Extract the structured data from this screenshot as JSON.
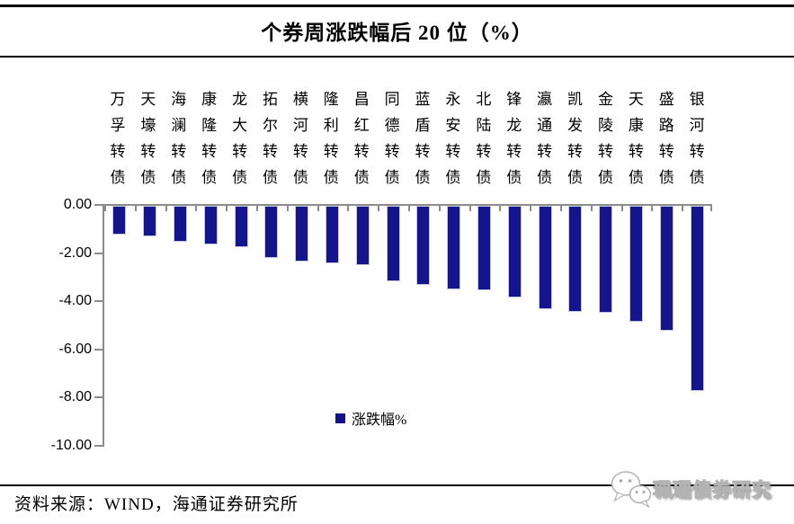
{
  "title": "个券周涨跌幅后 20 位（%）",
  "chart_data": {
    "type": "bar",
    "title": "个券周涨跌幅后 20 位（%）",
    "categories": [
      "万孚转债",
      "天壕转债",
      "海澜转债",
      "康隆转债",
      "龙大转债",
      "拓尔转债",
      "横河转债",
      "隆利转债",
      "昌红转债",
      "同德转债",
      "蓝盾转债",
      "永安转债",
      "北陆转债",
      "锋龙转债",
      "瀛通转债",
      "凯发转债",
      "金陵转债",
      "天康转债",
      "盛路转债",
      "银河转债"
    ],
    "series": [
      {
        "name": "涨跌幅%",
        "values": [
          -1.2,
          -1.25,
          -1.5,
          -1.6,
          -1.7,
          -2.15,
          -2.3,
          -2.4,
          -2.45,
          -3.15,
          -3.3,
          -3.45,
          -3.5,
          -3.8,
          -4.3,
          -4.4,
          -4.45,
          -4.8,
          -5.2,
          -7.7
        ]
      }
    ],
    "xlabel": "",
    "ylabel": "",
    "ylim": [
      -10,
      0
    ],
    "ytick_labels": [
      "0.00",
      "-2.00",
      "-4.00",
      "-6.00",
      "-8.00",
      "-10.00"
    ],
    "grid": false,
    "legend_position": "inside-bottom-center",
    "bar_color": "#14148C",
    "axis_color": "#8c8c8c"
  },
  "legend": {
    "label": "涨跌幅%"
  },
  "footer": {
    "source_label": "资料来源：WIND，海通证券研究所"
  },
  "watermark": {
    "text": "珮珊债券研究",
    "icon": "wechat-icon"
  }
}
